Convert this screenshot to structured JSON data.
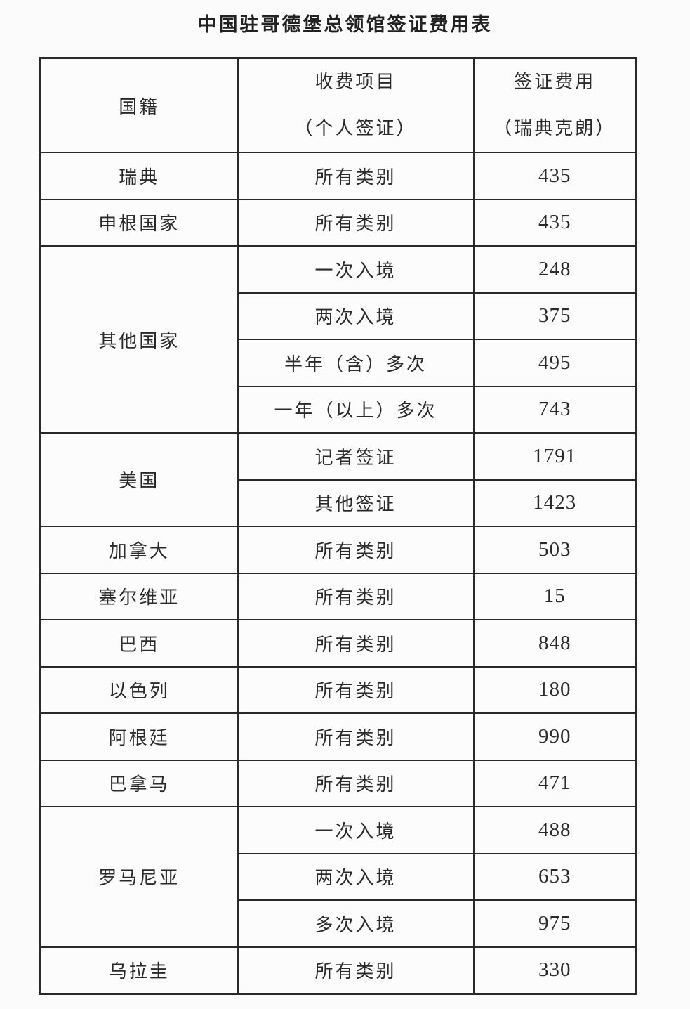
{
  "title": "中国驻哥德堡总领馆签证费用表",
  "colors": {
    "text": "#2a2a2a",
    "border": "#2a2a2a",
    "background": "#fbfbfb"
  },
  "table": {
    "headers": {
      "col1": "国籍",
      "col2_line1": "收费项目",
      "col2_line2": "（个人签证）",
      "col3_line1": "签证费用",
      "col3_line2": "（瑞典克朗）"
    },
    "groups": [
      {
        "nationality": "瑞典",
        "items": [
          {
            "category": "所有类别",
            "fee": "435"
          }
        ]
      },
      {
        "nationality": "申根国家",
        "items": [
          {
            "category": "所有类别",
            "fee": "435"
          }
        ]
      },
      {
        "nationality": "其他国家",
        "items": [
          {
            "category": "一次入境",
            "fee": "248"
          },
          {
            "category": "两次入境",
            "fee": "375"
          },
          {
            "category": "半年（含）多次",
            "fee": "495"
          },
          {
            "category": "一年（以上）多次",
            "fee": "743"
          }
        ]
      },
      {
        "nationality": "美国",
        "items": [
          {
            "category": "记者签证",
            "fee": "1791"
          },
          {
            "category": "其他签证",
            "fee": "1423"
          }
        ]
      },
      {
        "nationality": "加拿大",
        "items": [
          {
            "category": "所有类别",
            "fee": "503"
          }
        ]
      },
      {
        "nationality": "塞尔维亚",
        "items": [
          {
            "category": "所有类别",
            "fee": "15"
          }
        ]
      },
      {
        "nationality": "巴西",
        "items": [
          {
            "category": "所有类别",
            "fee": "848"
          }
        ]
      },
      {
        "nationality": "以色列",
        "items": [
          {
            "category": "所有类别",
            "fee": "180"
          }
        ]
      },
      {
        "nationality": "阿根廷",
        "items": [
          {
            "category": "所有类别",
            "fee": "990"
          }
        ]
      },
      {
        "nationality": "巴拿马",
        "items": [
          {
            "category": "所有类别",
            "fee": "471"
          }
        ]
      },
      {
        "nationality": "罗马尼亚",
        "items": [
          {
            "category": "一次入境",
            "fee": "488"
          },
          {
            "category": "两次入境",
            "fee": "653"
          },
          {
            "category": "多次入境",
            "fee": "975"
          }
        ]
      },
      {
        "nationality": "乌拉圭",
        "items": [
          {
            "category": "所有类别",
            "fee": "330"
          }
        ]
      }
    ]
  }
}
